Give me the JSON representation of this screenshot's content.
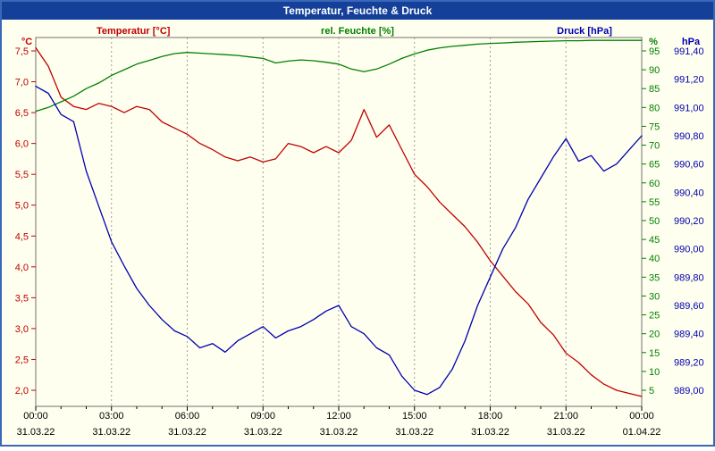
{
  "window": {
    "title": "Temperatur, Feuchte & Druck"
  },
  "colors": {
    "background": "#FFFFEF",
    "titlebar": "#15409A",
    "border": "#3A67B8",
    "grid": "#9C9C9C",
    "frame": "#707070",
    "axis_text": "#000000"
  },
  "chart_data": {
    "type": "line",
    "title": "Temperatur, Feuchte & Druck",
    "x_axis": {
      "hours_min": 0,
      "hours_max": 24,
      "tick_times": [
        "00:00",
        "03:00",
        "06:00",
        "09:00",
        "12:00",
        "15:00",
        "18:00",
        "21:00",
        "00:00"
      ],
      "tick_dates": [
        "31.03.22",
        "31.03.22",
        "31.03.22",
        "31.03.22",
        "31.03.22",
        "31.03.22",
        "31.03.22",
        "31.03.22",
        "01.04.22"
      ]
    },
    "axes": {
      "temperature": {
        "label": "Temperatur [°C]",
        "unit": "°C",
        "color": "#C00000",
        "tick_min": 2.0,
        "tick_max": 7.5,
        "tick_step": 0.5,
        "decimals": 1,
        "side": "left"
      },
      "humidity": {
        "label": "rel. Feuchte [%]",
        "unit": "%",
        "color": "#008000",
        "tick_min": 5,
        "tick_max": 95,
        "tick_step": 5,
        "decimals": 0,
        "side": "right"
      },
      "pressure": {
        "label": "Druck [hPa]",
        "unit": "hPa",
        "color": "#0000B0",
        "tick_min": 989.0,
        "tick_max": 991.4,
        "tick_step": 0.2,
        "decimals": 2,
        "side": "right-outer"
      }
    },
    "sample_interval_hours": 0.5,
    "grid": {
      "vertical_dashed_every_hours": 3
    },
    "legend_position": "top",
    "series": [
      {
        "name": "Temperatur",
        "axis": "temperature",
        "color": "#C00000",
        "values": [
          7.55,
          7.25,
          6.75,
          6.6,
          6.55,
          6.65,
          6.6,
          6.5,
          6.6,
          6.55,
          6.35,
          6.25,
          6.15,
          6.0,
          5.9,
          5.78,
          5.72,
          5.78,
          5.7,
          5.75,
          6.0,
          5.95,
          5.85,
          5.95,
          5.85,
          6.05,
          6.55,
          6.1,
          6.3,
          5.9,
          5.5,
          5.3,
          5.05,
          4.85,
          4.65,
          4.4,
          4.1,
          3.85,
          3.6,
          3.4,
          3.1,
          2.9,
          2.6,
          2.45,
          2.25,
          2.1,
          2.0,
          1.95,
          1.9
        ]
      },
      {
        "name": "rel. Feuchte",
        "axis": "humidity",
        "color": "#008000",
        "values": [
          79,
          80,
          81.5,
          83,
          85,
          86.5,
          88.5,
          90,
          91.5,
          92.5,
          93.5,
          94.3,
          94.6,
          94.4,
          94.2,
          94.0,
          93.8,
          93.4,
          93.0,
          91.8,
          92.3,
          92.6,
          92.4,
          92.0,
          91.5,
          90.2,
          89.5,
          90.2,
          91.5,
          93.0,
          94.2,
          95.2,
          95.8,
          96.2,
          96.5,
          96.8,
          97.0,
          97.1,
          97.3,
          97.4,
          97.5,
          97.6,
          97.7,
          97.7,
          97.8,
          97.8,
          97.8,
          97.8,
          97.8
        ]
      },
      {
        "name": "Druck",
        "axis": "pressure",
        "color": "#0000B0",
        "values": [
          991.15,
          991.1,
          990.95,
          990.9,
          990.55,
          990.3,
          990.05,
          989.88,
          989.72,
          989.6,
          989.5,
          989.42,
          989.38,
          989.3,
          989.33,
          989.27,
          989.35,
          989.4,
          989.45,
          989.37,
          989.42,
          989.45,
          989.5,
          989.56,
          989.6,
          989.45,
          989.4,
          989.3,
          989.25,
          989.1,
          989.0,
          988.97,
          989.02,
          989.15,
          989.35,
          989.6,
          989.8,
          990.0,
          990.15,
          990.35,
          990.5,
          990.65,
          990.78,
          990.62,
          990.66,
          990.55,
          990.6,
          990.7,
          990.8
        ]
      }
    ]
  }
}
